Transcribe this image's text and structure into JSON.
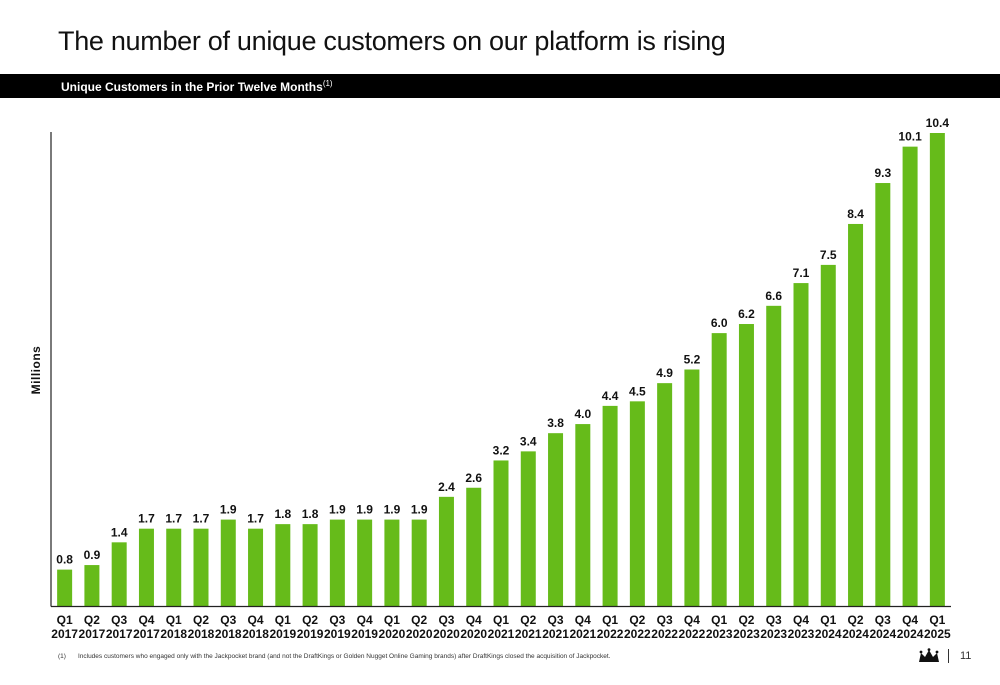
{
  "page": {
    "title": "The number of unique customers on our platform is rising",
    "banner_text": "Unique Customers in the Prior Twelve Months",
    "banner_sup": "(1)",
    "footnote_number": "(1)",
    "footnote_text": "Includes customers who engaged only with the Jackpocket brand (and not the DraftKings or Golden Nugget Online Gaming brands) after DraftKings closed the acquisition of Jackpocket.",
    "page_number": "11",
    "logo_icon": "crown-icon"
  },
  "chart_data": {
    "type": "bar",
    "title": "Unique Customers in the Prior Twelve Months",
    "ylabel": "Millions",
    "xlabel": "",
    "ylim": [
      0,
      10.4
    ],
    "bar_color": "#66BB1A",
    "grid": false,
    "legend": "none",
    "categories": [
      [
        "Q1",
        "2017"
      ],
      [
        "Q2",
        "2017"
      ],
      [
        "Q3",
        "2017"
      ],
      [
        "Q4",
        "2017"
      ],
      [
        "Q1",
        "2018"
      ],
      [
        "Q2",
        "2018"
      ],
      [
        "Q3",
        "2018"
      ],
      [
        "Q4",
        "2018"
      ],
      [
        "Q1",
        "2019"
      ],
      [
        "Q2",
        "2019"
      ],
      [
        "Q3",
        "2019"
      ],
      [
        "Q4",
        "2019"
      ],
      [
        "Q1",
        "2020"
      ],
      [
        "Q2",
        "2020"
      ],
      [
        "Q3",
        "2020"
      ],
      [
        "Q4",
        "2020"
      ],
      [
        "Q1",
        "2021"
      ],
      [
        "Q2",
        "2021"
      ],
      [
        "Q3",
        "2021"
      ],
      [
        "Q4",
        "2021"
      ],
      [
        "Q1",
        "2022"
      ],
      [
        "Q2",
        "2022"
      ],
      [
        "Q3",
        "2022"
      ],
      [
        "Q4",
        "2022"
      ],
      [
        "Q1",
        "2023"
      ],
      [
        "Q2",
        "2023"
      ],
      [
        "Q3",
        "2023"
      ],
      [
        "Q4",
        "2023"
      ],
      [
        "Q1",
        "2024"
      ],
      [
        "Q2",
        "2024"
      ],
      [
        "Q3",
        "2024"
      ],
      [
        "Q4",
        "2024"
      ],
      [
        "Q1",
        "2025"
      ]
    ],
    "values": [
      0.8,
      0.9,
      1.4,
      1.7,
      1.7,
      1.7,
      1.9,
      1.7,
      1.8,
      1.8,
      1.9,
      1.9,
      1.9,
      1.9,
      2.4,
      2.6,
      3.2,
      3.4,
      3.8,
      4.0,
      4.4,
      4.5,
      4.9,
      5.2,
      6.0,
      6.2,
      6.6,
      7.1,
      7.5,
      8.4,
      9.3,
      10.1,
      10.4
    ],
    "value_labels": [
      "0.8",
      "0.9",
      "1.4",
      "1.7",
      "1.7",
      "1.7",
      "1.9",
      "1.7",
      "1.8",
      "1.8",
      "1.9",
      "1.9",
      "1.9",
      "1.9",
      "2.4",
      "2.6",
      "3.2",
      "3.4",
      "3.8",
      "4.0",
      "4.4",
      "4.5",
      "4.9",
      "5.2",
      "6.0",
      "6.2",
      "6.6",
      "7.1",
      "7.5",
      "8.4",
      "9.3",
      "10.1",
      "10.4"
    ]
  }
}
